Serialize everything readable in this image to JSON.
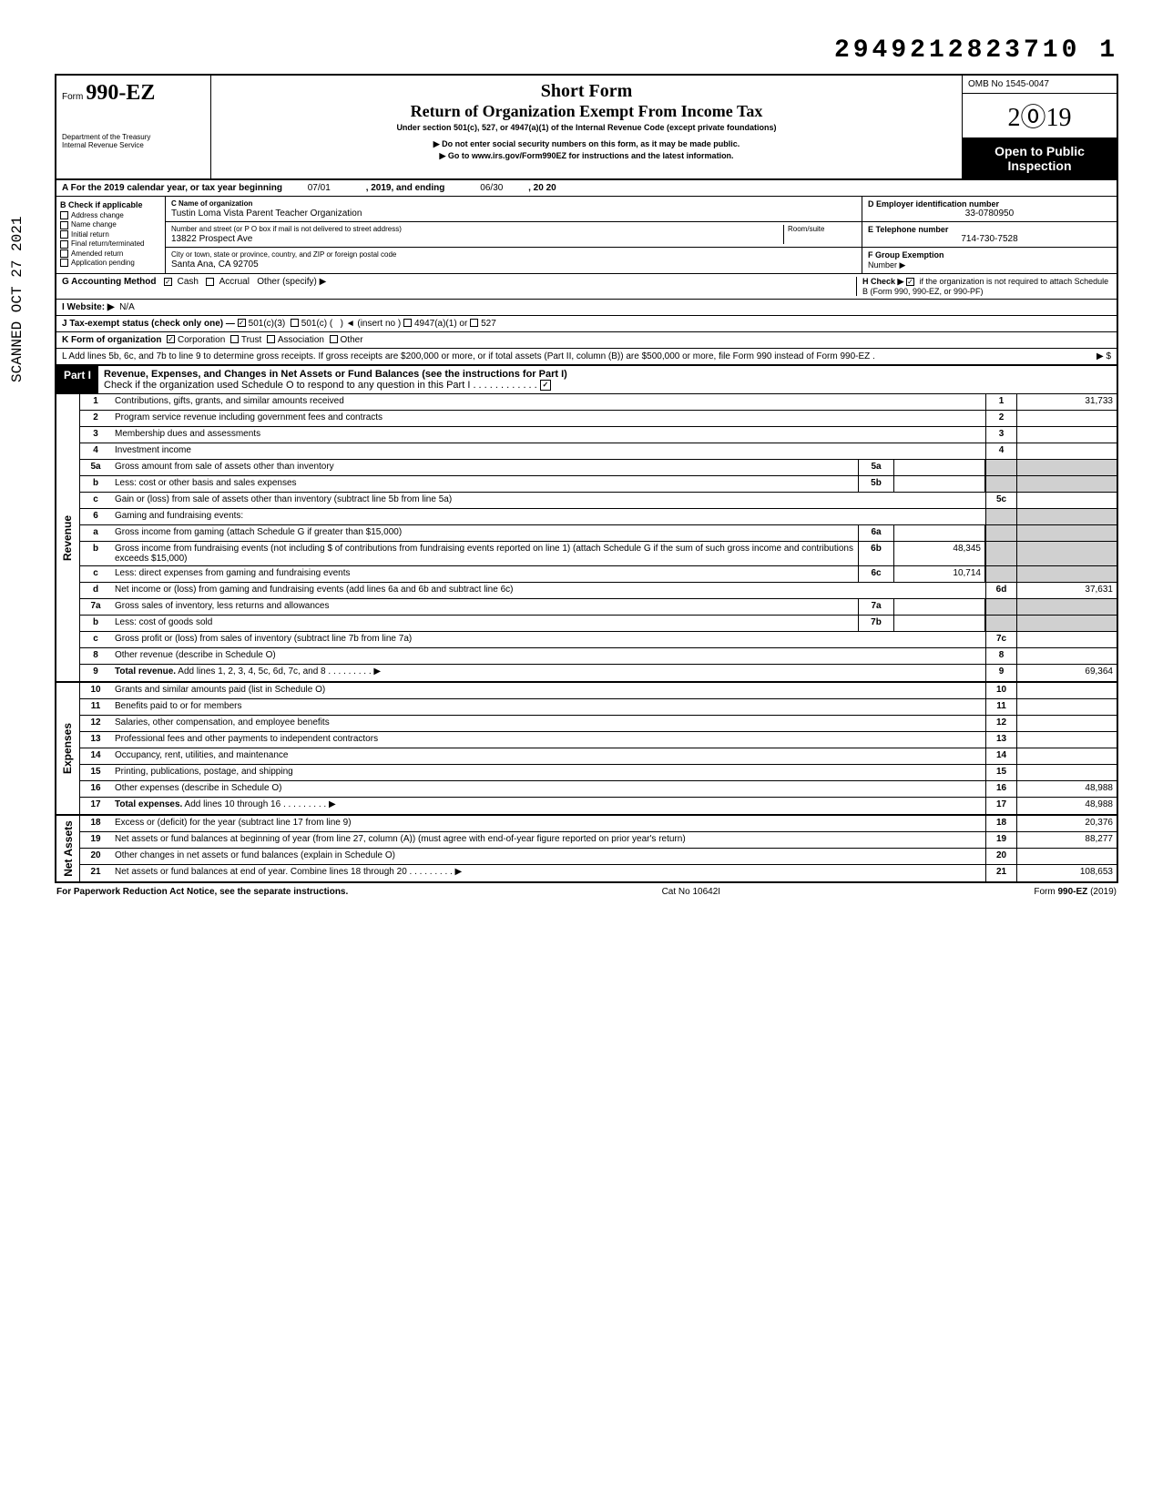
{
  "top_number": "2949212823710 1",
  "side_stamp": "SCANNED OCT 27 2021",
  "header": {
    "form_prefix": "Form",
    "form_number": "990-EZ",
    "dept1": "Department of the Treasury",
    "dept2": "Internal Revenue Service",
    "short_form": "Short Form",
    "return_title": "Return of Organization Exempt From Income Tax",
    "under_section": "Under section 501(c), 527, or 4947(a)(1) of the Internal Revenue Code (except private foundations)",
    "no_ssn": "▶ Do not enter social security numbers on this form, as it may be made public.",
    "goto": "▶ Go to www.irs.gov/Form990EZ for instructions and the latest information.",
    "omb": "OMB No 1545-0047",
    "year": "2019",
    "open_public_1": "Open to Public",
    "open_public_2": "Inspection"
  },
  "row_a": {
    "label_a": "A For the 2019 calendar year, or tax year beginning",
    "begin": "07/01",
    "mid": ", 2019, and ending",
    "end": "06/30",
    "tail": ", 20  20"
  },
  "col_b": {
    "header": "B Check if applicable",
    "items": [
      "Address change",
      "Name change",
      "Initial return",
      "Final return/terminated",
      "Amended return",
      "Application pending"
    ]
  },
  "col_c": {
    "label_name": "C Name of organization",
    "name": "Tustin Loma Vista Parent Teacher Organization",
    "label_street": "Number and street (or P O  box if mail is not delivered to street address)",
    "room_label": "Room/suite",
    "street": "13822 Prospect Ave",
    "label_city": "City or town, state or province, country, and ZIP or foreign postal code",
    "city": "Santa Ana, CA 92705"
  },
  "col_de": {
    "d_label": "D Employer identification number",
    "d_val": "33-0780950",
    "e_label": "E Telephone number",
    "e_val": "714-730-7528",
    "f_label": "F Group Exemption",
    "f_label2": "Number ▶"
  },
  "row_g": {
    "label": "G Accounting Method",
    "cash": "Cash",
    "accrual": "Accrual",
    "other": "Other (specify) ▶",
    "cash_checked": true
  },
  "row_h": {
    "label": "H Check ▶",
    "text": "if the organization is not required to attach Schedule B (Form 990, 990-EZ, or 990-PF)",
    "checked": true
  },
  "row_i": {
    "label": "I  Website: ▶",
    "val": "N/A"
  },
  "row_j": {
    "label": "J Tax-exempt status (check only one) —",
    "c3": "501(c)(3)",
    "c": "501(c) (",
    "insert": ") ◄ (insert no )",
    "a47": "4947(a)(1) or",
    "s527": "527",
    "c3_checked": true
  },
  "row_k": {
    "label": "K Form of organization",
    "corp": "Corporation",
    "trust": "Trust",
    "assoc": "Association",
    "other": "Other",
    "corp_checked": true
  },
  "row_l": {
    "text": "L Add lines 5b, 6c, and 7b to line 9 to determine gross receipts. If gross receipts are $200,000 or more, or if total assets (Part II, column (B)) are $500,000 or more, file Form 990 instead of Form 990-EZ .",
    "arrow": "▶  $"
  },
  "part1": {
    "label": "Part I",
    "title": "Revenue, Expenses, and Changes in Net Assets or Fund Balances (see the instructions for Part I)",
    "check_line": "Check if the organization used Schedule O to respond to any question in this Part I",
    "check_checked": true
  },
  "sections": {
    "revenue_label": "Revenue",
    "expenses_label": "Expenses",
    "netassets_label": "Net Assets"
  },
  "lines": [
    {
      "n": "1",
      "d": "Contributions, gifts, grants, and similar amounts received",
      "rn": "1",
      "rv": "31,733"
    },
    {
      "n": "2",
      "d": "Program service revenue including government fees and contracts",
      "rn": "2",
      "rv": ""
    },
    {
      "n": "3",
      "d": "Membership dues and assessments",
      "rn": "3",
      "rv": ""
    },
    {
      "n": "4",
      "d": "Investment income",
      "rn": "4",
      "rv": ""
    },
    {
      "n": "5a",
      "d": "Gross amount from sale of assets other than inventory",
      "mn": "5a",
      "mv": ""
    },
    {
      "n": "b",
      "d": "Less: cost or other basis and sales expenses",
      "mn": "5b",
      "mv": ""
    },
    {
      "n": "c",
      "d": "Gain or (loss) from sale of assets other than inventory (subtract line 5b from line 5a)",
      "rn": "5c",
      "rv": ""
    },
    {
      "n": "6",
      "d": "Gaming and fundraising events:"
    },
    {
      "n": "a",
      "d": "Gross income from gaming (attach Schedule G if greater than $15,000)",
      "mn": "6a",
      "mv": ""
    },
    {
      "n": "b",
      "d": "Gross income from fundraising events (not including  $                   of contributions from fundraising events reported on line 1) (attach Schedule G if the sum of such gross income and contributions exceeds $15,000)",
      "mn": "6b",
      "mv": "48,345"
    },
    {
      "n": "c",
      "d": "Less: direct expenses from gaming and fundraising events",
      "mn": "6c",
      "mv": "10,714"
    },
    {
      "n": "d",
      "d": "Net income or (loss) from gaming and fundraising events (add lines 6a and 6b and subtract line 6c)",
      "rn": "6d",
      "rv": "37,631"
    },
    {
      "n": "7a",
      "d": "Gross sales of inventory, less returns and allowances",
      "mn": "7a",
      "mv": ""
    },
    {
      "n": "b",
      "d": "Less: cost of goods sold",
      "mn": "7b",
      "mv": ""
    },
    {
      "n": "c",
      "d": "Gross profit or (loss) from sales of inventory (subtract line 7b from line 7a)",
      "rn": "7c",
      "rv": ""
    },
    {
      "n": "8",
      "d": "Other revenue (describe in Schedule O)",
      "rn": "8",
      "rv": ""
    },
    {
      "n": "9",
      "d": "Total revenue. Add lines 1, 2, 3, 4, 5c, 6d, 7c, and 8",
      "rn": "9",
      "rv": "69,364",
      "bold": true,
      "arrow": true
    }
  ],
  "exp_lines": [
    {
      "n": "10",
      "d": "Grants and similar amounts paid (list in Schedule O)",
      "rn": "10",
      "rv": ""
    },
    {
      "n": "11",
      "d": "Benefits paid to or for members",
      "rn": "11",
      "rv": ""
    },
    {
      "n": "12",
      "d": "Salaries, other compensation, and employee benefits",
      "rn": "12",
      "rv": ""
    },
    {
      "n": "13",
      "d": "Professional fees and other payments to independent contractors",
      "rn": "13",
      "rv": ""
    },
    {
      "n": "14",
      "d": "Occupancy, rent, utilities, and maintenance",
      "rn": "14",
      "rv": ""
    },
    {
      "n": "15",
      "d": "Printing, publications, postage, and shipping",
      "rn": "15",
      "rv": ""
    },
    {
      "n": "16",
      "d": "Other expenses (describe in Schedule O)",
      "rn": "16",
      "rv": "48,988"
    },
    {
      "n": "17",
      "d": "Total expenses. Add lines 10 through 16",
      "rn": "17",
      "rv": "48,988",
      "bold": true,
      "arrow": true
    }
  ],
  "na_lines": [
    {
      "n": "18",
      "d": "Excess or (deficit) for the year (subtract line 17 from line 9)",
      "rn": "18",
      "rv": "20,376"
    },
    {
      "n": "19",
      "d": "Net assets or fund balances at beginning of year (from line 27, column (A)) (must agree with end-of-year figure reported on prior year's return)",
      "rn": "19",
      "rv": "88,277"
    },
    {
      "n": "20",
      "d": "Other changes in net assets or fund balances (explain in Schedule O)",
      "rn": "20",
      "rv": ""
    },
    {
      "n": "21",
      "d": "Net assets or fund balances at end of year. Combine lines 18 through 20",
      "rn": "21",
      "rv": "108,653",
      "arrow": true
    }
  ],
  "footer": {
    "left": "For Paperwork Reduction Act Notice, see the separate instructions.",
    "mid": "Cat No 10642I",
    "right": "Form 990-EZ (2019)"
  }
}
